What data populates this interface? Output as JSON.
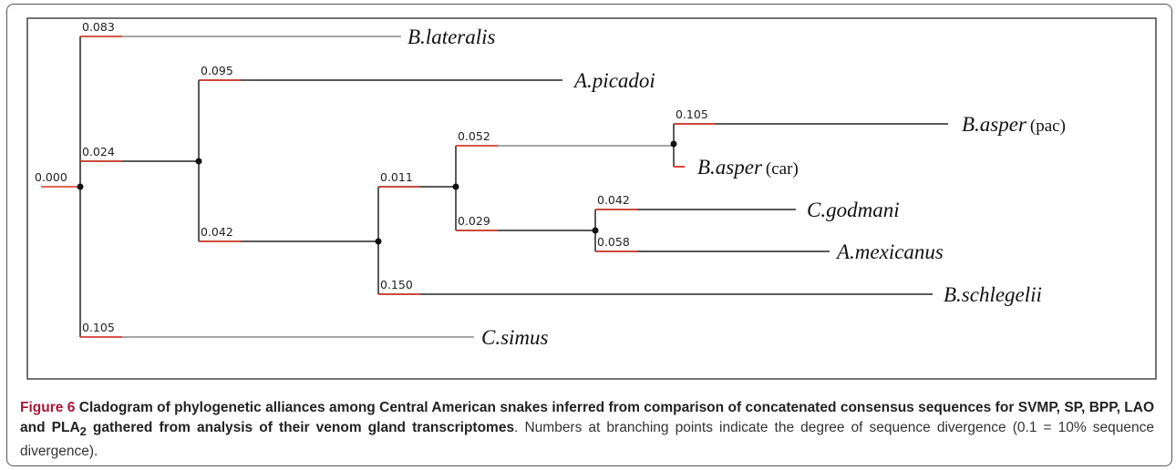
{
  "tree": {
    "branches": [
      {
        "length": "0.000"
      },
      {
        "length": "0.083"
      },
      {
        "length": "0.024"
      },
      {
        "length": "0.095"
      },
      {
        "length": "0.042"
      },
      {
        "length": "0.011"
      },
      {
        "length": "0.052"
      },
      {
        "length": "0.105"
      },
      {
        "length": "0.029"
      },
      {
        "length": "0.042"
      },
      {
        "length": "0.058"
      },
      {
        "length": "0.150"
      },
      {
        "length": "0.105"
      }
    ],
    "taxa": [
      {
        "name": "B.lateralis"
      },
      {
        "name": "A.picadoi"
      },
      {
        "name": "B.asper",
        "qualifier": "(pac)"
      },
      {
        "name": "B.asper",
        "qualifier": "(car)"
      },
      {
        "name": "C.godmani"
      },
      {
        "name": "A.mexicanus"
      },
      {
        "name": "B.schlegelii"
      },
      {
        "name": "C.simus"
      }
    ]
  },
  "caption": {
    "figure_label": "Figure 6",
    "title": "Cladogram of phylogenetic alliances among Central American snakes inferred from comparison of concatenated consensus sequences for SVMP, SP, BPP, LAO and PLA",
    "title_subscript": "2",
    "title_end": "gathered from analysis of their venom gland transcriptomes",
    "description": ". Numbers at branching points indicate the degree of sequence divergence (0.1 = 10% sequence divergence)."
  }
}
